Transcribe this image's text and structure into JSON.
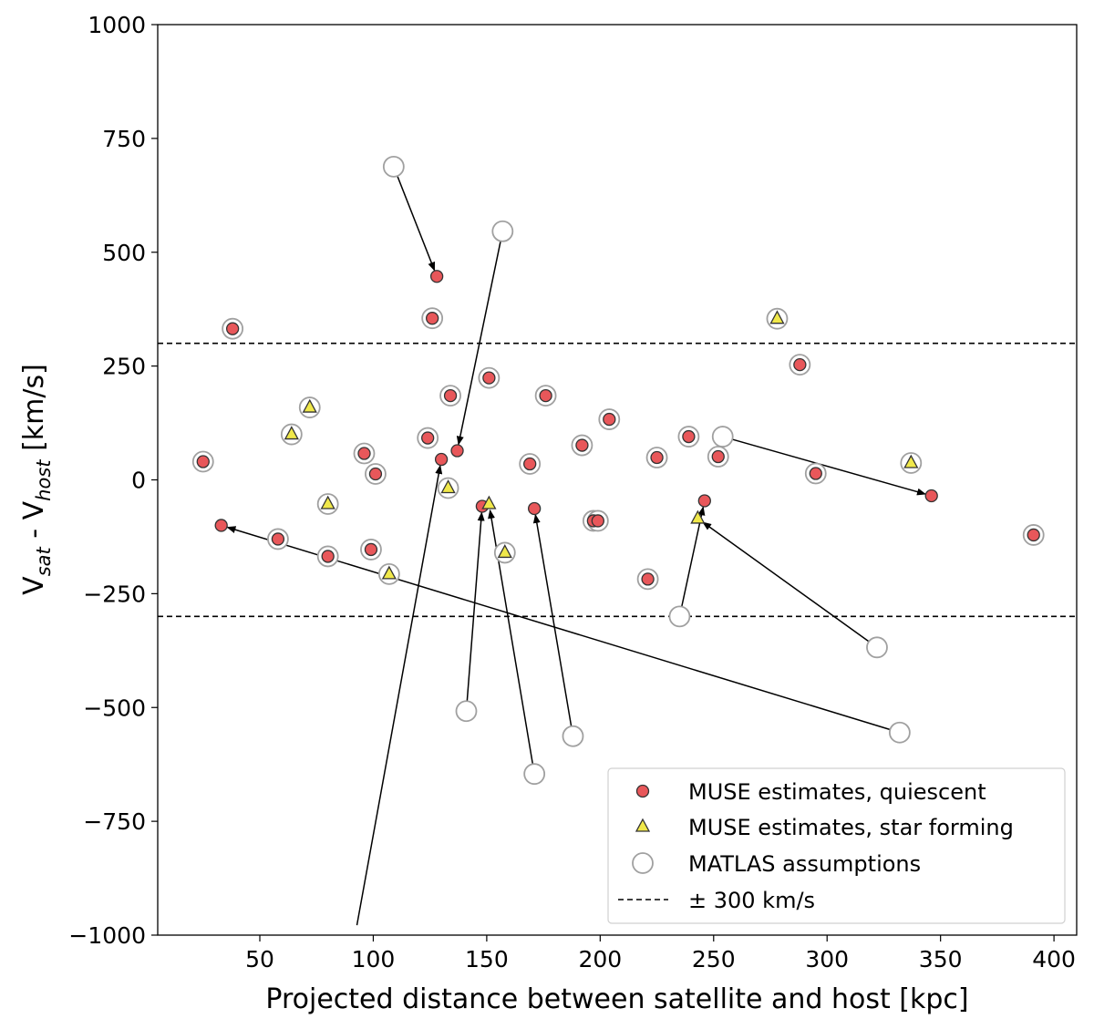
{
  "chart_data": {
    "type": "scatter",
    "xlabel": "Projected distance between satellite and host [kpc]",
    "ylabel": {
      "v": "V",
      "sat": "sat",
      "minus": " - V",
      "host": "host",
      "unit": " [km/s]"
    },
    "xlim": [
      5,
      410
    ],
    "ylim": [
      -1000,
      1000
    ],
    "xticks": [
      50,
      100,
      150,
      200,
      250,
      300,
      350,
      400
    ],
    "yticks": [
      -1000,
      -750,
      -500,
      -250,
      0,
      250,
      500,
      750,
      1000
    ],
    "hlines": [
      300,
      -300
    ],
    "grid": false,
    "legend_position": "lower-right",
    "legend": [
      {
        "label": "MUSE estimates, quiescent",
        "marker": "circle-red"
      },
      {
        "label": "MUSE estimates, star forming",
        "marker": "triangle-yellow"
      },
      {
        "label": "MATLAS assumptions",
        "marker": "open-circle"
      },
      {
        "label": "± 300 km/s",
        "marker": "dashed-line"
      }
    ],
    "colors": {
      "quiescent": "#e8575a",
      "star_forming": "#f0e84a",
      "matlas": "#a0a0a0",
      "edge": "#333333"
    },
    "series": [
      {
        "name": "MUSE estimates, quiescent",
        "points": [
          {
            "x": 25,
            "y": 40
          },
          {
            "x": 38,
            "y": 332
          },
          {
            "x": 58,
            "y": -130
          },
          {
            "x": 80,
            "y": -168
          },
          {
            "x": 96,
            "y": 58
          },
          {
            "x": 99,
            "y": -153
          },
          {
            "x": 101,
            "y": 13
          },
          {
            "x": 124,
            "y": 92
          },
          {
            "x": 126,
            "y": 355
          },
          {
            "x": 134,
            "y": 185
          },
          {
            "x": 151,
            "y": 224
          },
          {
            "x": 169,
            "y": 35
          },
          {
            "x": 176,
            "y": 185
          },
          {
            "x": 192,
            "y": 76
          },
          {
            "x": 197,
            "y": -90
          },
          {
            "x": 199,
            "y": -90
          },
          {
            "x": 204,
            "y": 133
          },
          {
            "x": 221,
            "y": -218
          },
          {
            "x": 225,
            "y": 49
          },
          {
            "x": 239,
            "y": 95
          },
          {
            "x": 252,
            "y": 51
          },
          {
            "x": 288,
            "y": 253
          },
          {
            "x": 295,
            "y": 14
          },
          {
            "x": 391,
            "y": -121
          },
          {
            "x": 33,
            "y": -100
          },
          {
            "x": 128,
            "y": 447
          },
          {
            "x": 130,
            "y": 45
          },
          {
            "x": 137,
            "y": 64
          },
          {
            "x": 148,
            "y": -58
          },
          {
            "x": 171,
            "y": -63
          },
          {
            "x": 246,
            "y": -46
          },
          {
            "x": 346,
            "y": -35
          }
        ]
      },
      {
        "name": "MUSE estimates, star forming",
        "points": [
          {
            "x": 64,
            "y": 100
          },
          {
            "x": 72,
            "y": 159
          },
          {
            "x": 80,
            "y": -53
          },
          {
            "x": 107,
            "y": -207
          },
          {
            "x": 133,
            "y": -18
          },
          {
            "x": 158,
            "y": -160
          },
          {
            "x": 278,
            "y": 354
          },
          {
            "x": 337,
            "y": 37
          },
          {
            "x": 151,
            "y": -53
          },
          {
            "x": 243,
            "y": -85
          }
        ]
      },
      {
        "name": "MATLAS assumptions",
        "points": [
          {
            "x": 25,
            "y": 40
          },
          {
            "x": 38,
            "y": 332
          },
          {
            "x": 58,
            "y": -130
          },
          {
            "x": 80,
            "y": -168
          },
          {
            "x": 96,
            "y": 58
          },
          {
            "x": 99,
            "y": -153
          },
          {
            "x": 101,
            "y": 13
          },
          {
            "x": 124,
            "y": 92
          },
          {
            "x": 126,
            "y": 355
          },
          {
            "x": 134,
            "y": 185
          },
          {
            "x": 151,
            "y": 224
          },
          {
            "x": 169,
            "y": 35
          },
          {
            "x": 176,
            "y": 185
          },
          {
            "x": 192,
            "y": 76
          },
          {
            "x": 197,
            "y": -90
          },
          {
            "x": 199,
            "y": -90
          },
          {
            "x": 204,
            "y": 133
          },
          {
            "x": 221,
            "y": -218
          },
          {
            "x": 225,
            "y": 49
          },
          {
            "x": 239,
            "y": 95
          },
          {
            "x": 252,
            "y": 51
          },
          {
            "x": 288,
            "y": 253
          },
          {
            "x": 295,
            "y": 14
          },
          {
            "x": 391,
            "y": -121
          },
          {
            "x": 64,
            "y": 100
          },
          {
            "x": 72,
            "y": 159
          },
          {
            "x": 80,
            "y": -53
          },
          {
            "x": 107,
            "y": -207
          },
          {
            "x": 133,
            "y": -18
          },
          {
            "x": 158,
            "y": -160
          },
          {
            "x": 278,
            "y": 354
          },
          {
            "x": 337,
            "y": 37
          },
          {
            "x": 109,
            "y": 688
          },
          {
            "x": 157,
            "y": 546
          },
          {
            "x": 254,
            "y": 95
          },
          {
            "x": 332,
            "y": -555
          },
          {
            "x": 141,
            "y": -508
          },
          {
            "x": 171,
            "y": -646
          },
          {
            "x": 188,
            "y": -563
          },
          {
            "x": 235,
            "y": -300
          },
          {
            "x": 322,
            "y": -368
          }
        ]
      }
    ],
    "arrows": [
      {
        "from": [
          109,
          688
        ],
        "to": [
          128,
          447
        ]
      },
      {
        "from": [
          157,
          546
        ],
        "to": [
          137,
          64
        ]
      },
      {
        "from": [
          92,
          -1000
        ],
        "to": [
          130,
          45
        ]
      },
      {
        "from": [
          254,
          95
        ],
        "to": [
          346,
          -35
        ]
      },
      {
        "from": [
          332,
          -555
        ],
        "to": [
          33,
          -100
        ]
      },
      {
        "from": [
          141,
          -508
        ],
        "to": [
          148,
          -58
        ]
      },
      {
        "from": [
          171,
          -646
        ],
        "to": [
          151,
          -53
        ]
      },
      {
        "from": [
          188,
          -563
        ],
        "to": [
          171,
          -63
        ]
      },
      {
        "from": [
          235,
          -300
        ],
        "to": [
          246,
          -46
        ]
      },
      {
        "from": [
          322,
          -368
        ],
        "to": [
          243,
          -85
        ]
      }
    ]
  }
}
